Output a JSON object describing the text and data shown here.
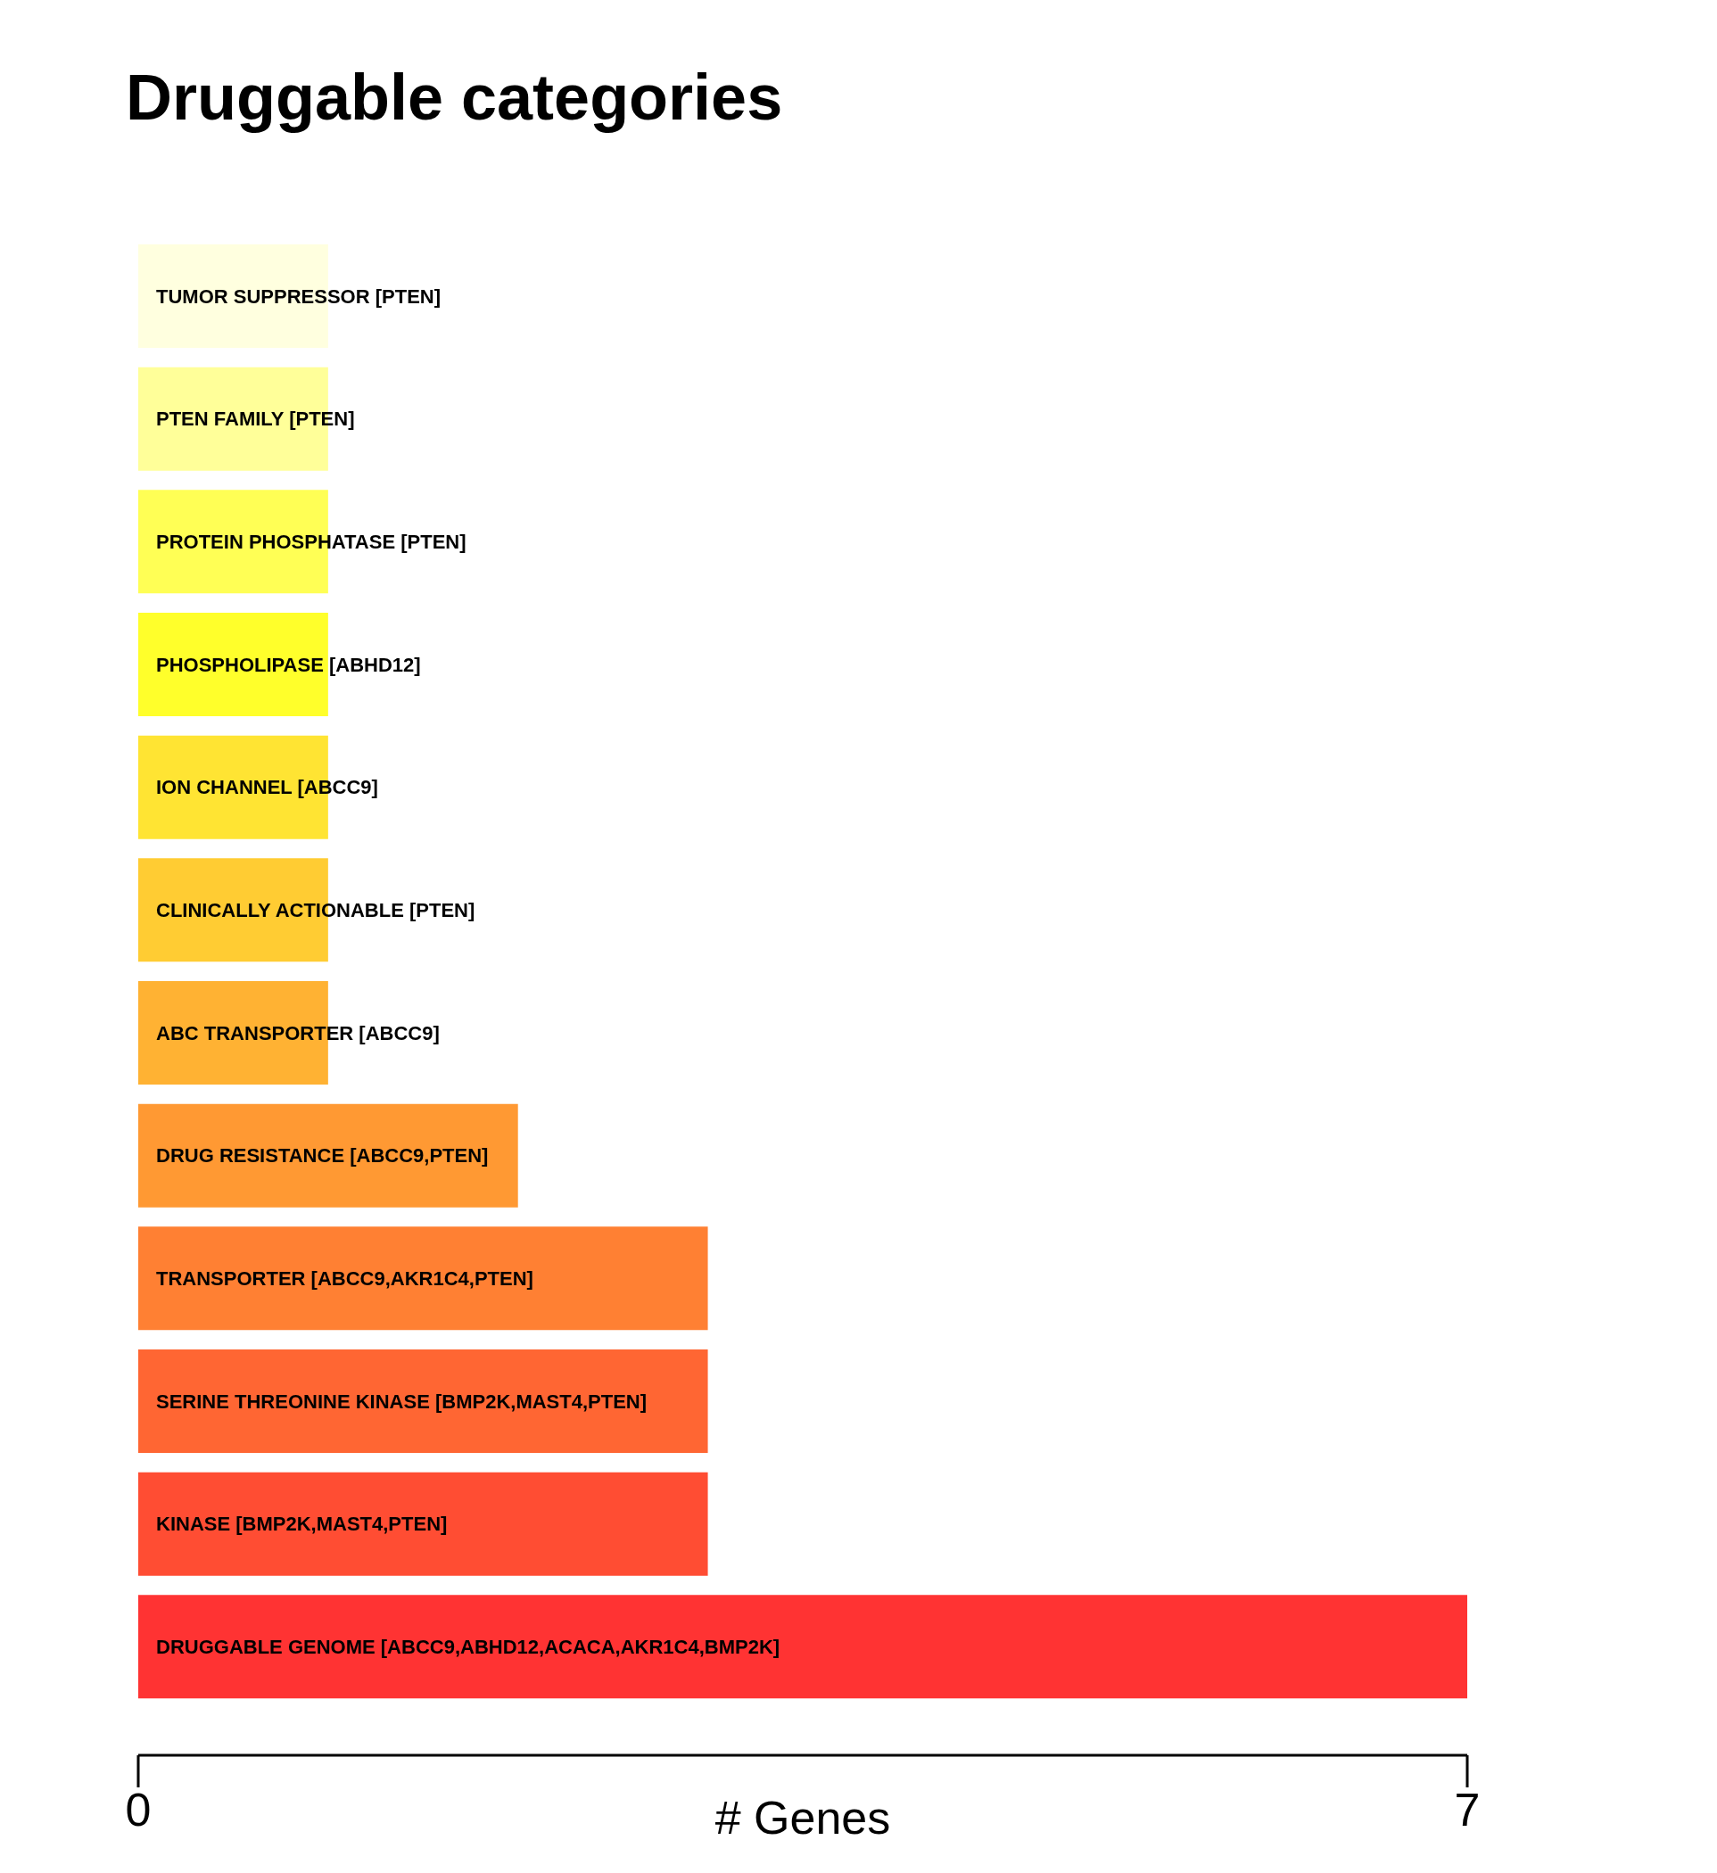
{
  "chart_data": {
    "type": "bar",
    "orientation": "horizontal",
    "title": "Druggable categories",
    "xlabel": "# Genes",
    "categories": [
      "TUMOR SUPPRESSOR [PTEN]",
      "PTEN FAMILY [PTEN]",
      "PROTEIN PHOSPHATASE [PTEN]",
      "PHOSPHOLIPASE [ABHD12]",
      "ION CHANNEL [ABCC9]",
      "CLINICALLY ACTIONABLE [PTEN]",
      "ABC TRANSPORTER [ABCC9]",
      "DRUG RESISTANCE [ABCC9,PTEN]",
      "TRANSPORTER [ABCC9,AKR1C4,PTEN]",
      "SERINE THREONINE KINASE [BMP2K,MAST4,PTEN]",
      "KINASE [BMP2K,MAST4,PTEN]",
      "DRUGGABLE GENOME [ABCC9,ABHD12,ACACA,AKR1C4,BMP2K]"
    ],
    "values": [
      1,
      1,
      1,
      1,
      1,
      1,
      1,
      2,
      3,
      3,
      3,
      7
    ],
    "colors": [
      "#ffffdf",
      "#ffff99",
      "#ffff55",
      "#ffff2b",
      "#ffe433",
      "#ffcc33",
      "#ffb233",
      "#ff9933",
      "#ff8033",
      "#ff6633",
      "#ff4d33",
      "#ff3333"
    ],
    "xlim": [
      0,
      7
    ],
    "xticks": [
      0,
      7
    ],
    "grid": false,
    "legend": false,
    "tick_labels": "x"
  }
}
